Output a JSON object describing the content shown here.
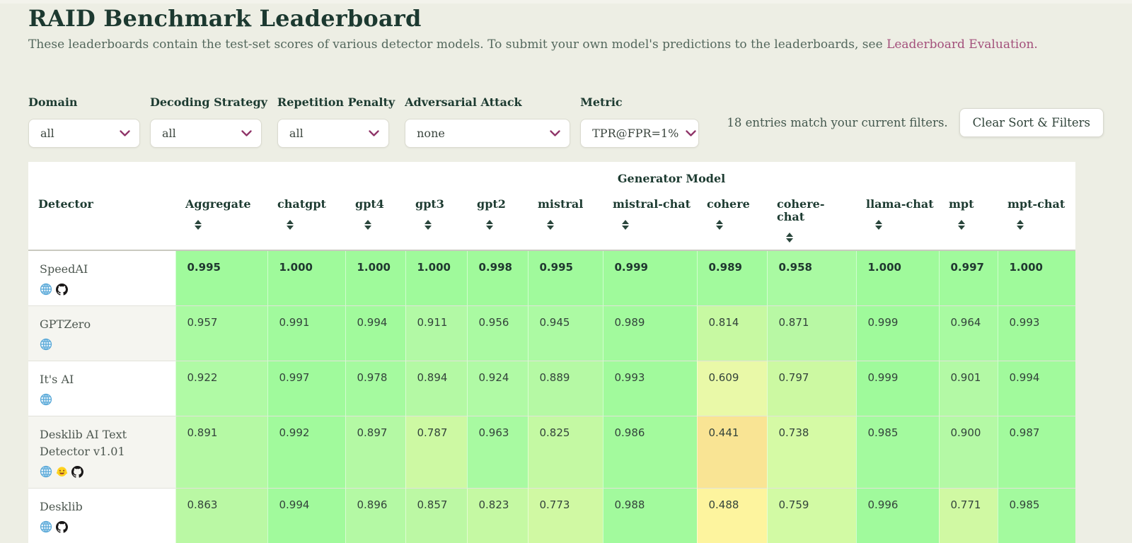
{
  "page": {
    "title": "RAID Benchmark Leaderboard",
    "subtitle_text": "These leaderboards contain the test-set scores of various detector models. To submit your own model's predictions to the leaderboards, see",
    "subtitle_link": "Leaderboard Evaluation."
  },
  "filters": [
    {
      "label": "Domain",
      "value": "all"
    },
    {
      "label": "Decoding Strategy",
      "value": "all"
    },
    {
      "label": "Repetition Penalty",
      "value": "all"
    },
    {
      "label": "Adversarial Attack",
      "value": "none"
    },
    {
      "label": "Metric",
      "value": "TPR@FPR=1%"
    }
  ],
  "status": {
    "entries_text": "18 entries match your current filters.",
    "clear_button_label": "Clear Sort & Filters"
  },
  "table": {
    "group_header": "Generator Model",
    "detector_header": "Detector",
    "columns": [
      "Aggregate",
      "chatgpt",
      "gpt4",
      "gpt3",
      "gpt2",
      "mistral",
      "mistral-chat",
      "cohere",
      "cohere-chat",
      "llama-chat",
      "mpt",
      "mpt-chat"
    ],
    "rows": [
      {
        "name": "SpeedAI",
        "icons": [
          "website",
          "github"
        ],
        "bold": true,
        "values": [
          "0.995",
          "1.000",
          "1.000",
          "1.000",
          "0.998",
          "0.995",
          "0.999",
          "0.989",
          "0.958",
          "1.000",
          "0.997",
          "1.000"
        ]
      },
      {
        "name": "GPTZero",
        "icons": [
          "website"
        ],
        "bold": false,
        "values": [
          "0.957",
          "0.991",
          "0.994",
          "0.911",
          "0.956",
          "0.945",
          "0.989",
          "0.814",
          "0.871",
          "0.999",
          "0.964",
          "0.993"
        ]
      },
      {
        "name": "It's AI",
        "icons": [
          "website"
        ],
        "bold": false,
        "values": [
          "0.922",
          "0.997",
          "0.978",
          "0.894",
          "0.924",
          "0.889",
          "0.993",
          "0.609",
          "0.797",
          "0.999",
          "0.901",
          "0.994"
        ]
      },
      {
        "name": "Desklib AI Text Detector v1.01",
        "icons": [
          "website",
          "huggingface",
          "github"
        ],
        "bold": false,
        "values": [
          "0.891",
          "0.992",
          "0.897",
          "0.787",
          "0.963",
          "0.825",
          "0.986",
          "0.441",
          "0.738",
          "0.985",
          "0.900",
          "0.987"
        ]
      },
      {
        "name": "Desklib",
        "icons": [
          "website",
          "github"
        ],
        "bold": false,
        "values": [
          "0.863",
          "0.994",
          "0.896",
          "0.857",
          "0.823",
          "0.773",
          "0.988",
          "0.488",
          "0.759",
          "0.996",
          "0.771",
          "0.985"
        ]
      }
    ]
  },
  "colors": {
    "page_background": "#edeee4",
    "title_text": "#1c3930",
    "link": "#a3507b",
    "chevron": "#8f3468",
    "sort_icon": "#2a463c",
    "heat_stops": [
      [
        0.4,
        [
          250,
          214,
          128
        ]
      ],
      [
        0.44,
        [
          249,
          228,
          148
        ]
      ],
      [
        0.49,
        [
          253,
          245,
          158
        ]
      ],
      [
        0.55,
        [
          247,
          248,
          162
        ]
      ],
      [
        0.61,
        [
          233,
          249,
          168
        ]
      ],
      [
        0.68,
        [
          222,
          250,
          167
        ]
      ],
      [
        0.74,
        [
          213,
          250,
          165
        ]
      ],
      [
        0.8,
        [
          203,
          249,
          162
        ]
      ],
      [
        0.87,
        [
          184,
          248,
          164
        ]
      ],
      [
        0.93,
        [
          175,
          250,
          165
        ]
      ],
      [
        0.97,
        [
          167,
          250,
          160
        ]
      ],
      [
        1.0,
        [
          159,
          250,
          155
        ]
      ]
    ]
  }
}
